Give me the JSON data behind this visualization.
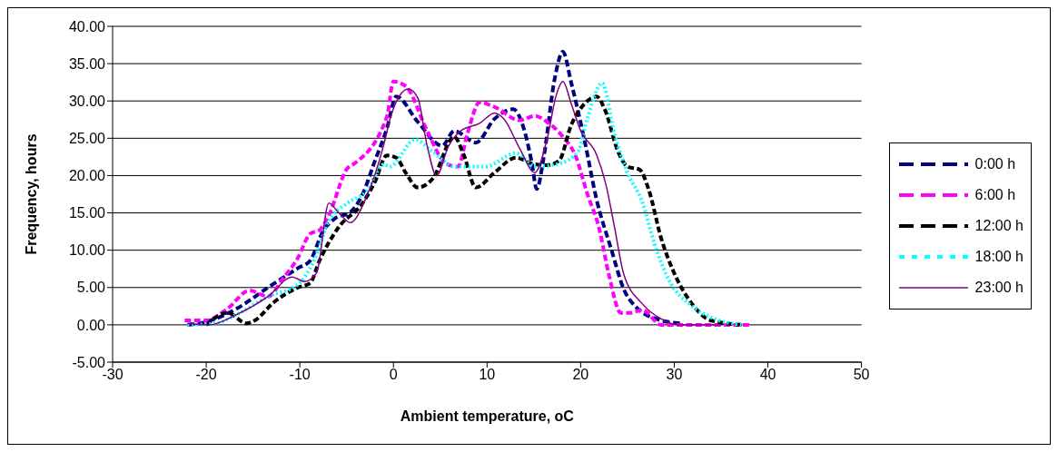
{
  "chart_data": {
    "type": "line",
    "xlabel": "Ambient temperature, oC",
    "ylabel": "Frequency, hours",
    "xlim": [
      -30,
      50
    ],
    "xticks": [
      -30,
      -20,
      -10,
      0,
      10,
      20,
      30,
      40,
      50
    ],
    "ylim": [
      -5,
      40
    ],
    "yticks": [
      {
        "value": -5,
        "label": "-5.00"
      },
      {
        "value": 0,
        "label": "0.00"
      },
      {
        "value": 5,
        "label": "5.00"
      },
      {
        "value": 10,
        "label": "10.00"
      },
      {
        "value": 15,
        "label": "15.00"
      },
      {
        "value": 20,
        "label": "20.00"
      },
      {
        "value": 25,
        "label": "25.00"
      },
      {
        "value": 30,
        "label": "30.00"
      },
      {
        "value": 35,
        "label": "35.00"
      },
      {
        "value": 40,
        "label": "40.00"
      }
    ],
    "grid": "y",
    "legend": "right",
    "series": [
      {
        "name": "0:00 h",
        "color": "#000080",
        "line_style": "dashed",
        "x": [
          -22,
          -20,
          -16.7,
          -13.4,
          -10.2,
          -8.9,
          -7.5,
          -6.2,
          -4.6,
          -3.3,
          -2,
          -0.7,
          0.3,
          2.6,
          5.2,
          6.5,
          8.8,
          10.8,
          12.8,
          13.8,
          14.8,
          15.3,
          16.1,
          17.2,
          18.1,
          19,
          20.4,
          21.7,
          23.3,
          24.6,
          25.9,
          28.6,
          30.6
        ],
        "values": [
          0,
          0.4,
          2.2,
          5,
          7.6,
          8.6,
          12.6,
          14.3,
          15.1,
          17.5,
          21.9,
          26.3,
          30.6,
          27.2,
          24,
          26,
          24.4,
          27.6,
          28.9,
          26.8,
          21.6,
          18.2,
          22.8,
          32.8,
          36.6,
          32.4,
          24.8,
          16.8,
          10,
          4.8,
          2.4,
          0.6,
          0.2
        ]
      },
      {
        "name": "6:00 h",
        "color": "#ff00ff",
        "line_style": "dashed",
        "x": [
          -22.3,
          -20,
          -17.7,
          -15.4,
          -13.4,
          -11.8,
          -10.2,
          -8.9,
          -7.9,
          -6.9,
          -4.9,
          -4.3,
          -0.7,
          0,
          1.3,
          3.6,
          5.6,
          6.9,
          7.9,
          9.2,
          10.8,
          13.5,
          15.1,
          16.4,
          18.1,
          19.4,
          20.7,
          22,
          23,
          24.3,
          25.3,
          26.6,
          28.6,
          38
        ],
        "values": [
          0.6,
          0.6,
          2.2,
          4.6,
          3.8,
          6.2,
          9,
          12.2,
          12.7,
          14.7,
          21,
          21.5,
          27.9,
          32.6,
          32,
          26,
          21.6,
          21.2,
          25.6,
          29.8,
          29.2,
          27.4,
          28,
          27.2,
          25.2,
          22.8,
          17.6,
          12.8,
          6.8,
          1.6,
          1.6,
          2,
          0,
          0
        ]
      },
      {
        "name": "12:00 h",
        "color": "#000000",
        "line_style": "dashed",
        "x": [
          -20,
          -17.7,
          -15.7,
          -14.8,
          -12.8,
          -10.2,
          -8.9,
          -7.9,
          -5.9,
          -3.3,
          -2,
          -0.7,
          0.3,
          1.3,
          2.6,
          4.2,
          6.5,
          7.5,
          8.8,
          10.8,
          13.1,
          14.8,
          16.4,
          17.7,
          19,
          20.4,
          21.7,
          22.6,
          24,
          25,
          26.3,
          27.3,
          28.6,
          29.9,
          31.9,
          33.9,
          37.2
        ],
        "values": [
          0,
          1.6,
          0.2,
          0.6,
          3,
          5,
          5.6,
          8.6,
          13,
          16.3,
          19.1,
          22.7,
          22.4,
          20.4,
          18.4,
          19.6,
          25.2,
          22.8,
          18.4,
          20.4,
          22.4,
          21.6,
          21.4,
          22,
          26.8,
          29.6,
          30.6,
          28.8,
          23.2,
          21.2,
          20.8,
          18,
          11.6,
          7.2,
          2.8,
          0.6,
          0
        ]
      },
      {
        "name": "18:00 h",
        "color": "#00ffff",
        "line_style": "dotted",
        "x": [
          -22,
          -19,
          -16.7,
          -13.4,
          -10.2,
          -8.5,
          -6.9,
          -4.9,
          -2.9,
          -1,
          -0.4,
          2.3,
          4.2,
          6.5,
          9.8,
          13.1,
          15.1,
          17.7,
          19.7,
          20.7,
          22.3,
          23.6,
          25,
          26.6,
          27.9,
          29.6,
          31.6,
          33.9,
          37.2
        ],
        "values": [
          0,
          0.2,
          1.4,
          3.8,
          5.4,
          8.6,
          13.9,
          16.3,
          17.9,
          21.5,
          21.2,
          24.8,
          23.2,
          21.2,
          21.2,
          23,
          21.2,
          21.6,
          23.2,
          27.6,
          32.4,
          25.6,
          20.4,
          16.4,
          10.8,
          5.6,
          2.8,
          1,
          0
        ]
      },
      {
        "name": "23:00 h",
        "color": "#800080",
        "line_style": "solid",
        "x": [
          -22,
          -19.7,
          -16.7,
          -13.4,
          -10.8,
          -9.5,
          -8.2,
          -6.9,
          -5.9,
          -4.6,
          -2.9,
          -1,
          -0.3,
          1.6,
          2.6,
          3.6,
          4.6,
          5.9,
          7.2,
          9.2,
          10.8,
          11.8,
          13.5,
          15.1,
          16.4,
          17.4,
          18.1,
          19,
          20,
          21.7,
          22.7,
          23.6,
          24.6,
          26.6,
          28.6,
          30.6,
          35
        ],
        "values": [
          0.2,
          0,
          1.4,
          3.8,
          6.4,
          5.8,
          7,
          16.3,
          15.1,
          13.7,
          17.1,
          24.3,
          27.9,
          31.6,
          30.4,
          24,
          20,
          24,
          26,
          27,
          28.4,
          27.6,
          23.6,
          20.4,
          24.8,
          30.8,
          32.6,
          29.6,
          26,
          22.8,
          18.8,
          13.2,
          6.8,
          2.8,
          0.8,
          0,
          0
        ]
      }
    ]
  }
}
